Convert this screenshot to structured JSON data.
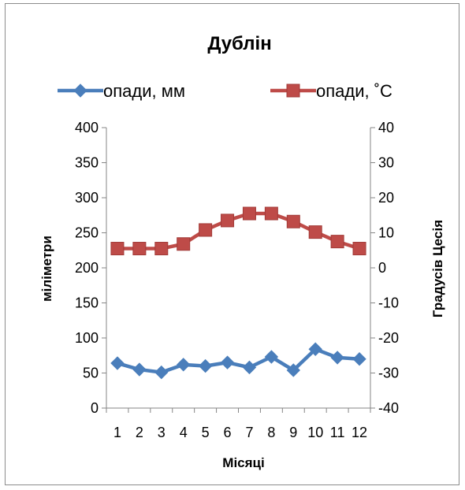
{
  "chart_data": {
    "type": "line",
    "title": "Дублін",
    "xlabel": "Місяці",
    "ylabel_left": "міліметри",
    "ylabel_right": "Градусів Цесія",
    "categories": [
      "1",
      "2",
      "3",
      "4",
      "5",
      "6",
      "7",
      "8",
      "9",
      "10",
      "11",
      "12"
    ],
    "ylim_left": [
      0,
      400
    ],
    "yticks_left": [
      "0",
      "50",
      "100",
      "150",
      "200",
      "250",
      "300",
      "350",
      "400"
    ],
    "ylim_right": [
      -40,
      40
    ],
    "yticks_right": [
      "-40",
      "-30",
      "-20",
      "-10",
      "0",
      "10",
      "20",
      "30",
      "40"
    ],
    "grid": false,
    "legend_position": "top",
    "series": [
      {
        "name": "опади, мм",
        "axis": "left",
        "color": "#4a7ebb",
        "marker": "diamond",
        "values": [
          64,
          55,
          51,
          62,
          60,
          65,
          58,
          73,
          54,
          84,
          72,
          70
        ]
      },
      {
        "name": "опади, ˚С",
        "axis": "right",
        "color": "#be4b48",
        "marker": "square",
        "values": [
          5.5,
          5.5,
          5.5,
          6.8,
          10.8,
          13.5,
          15.5,
          15.5,
          13.2,
          10.2,
          7.5,
          5.5
        ]
      }
    ]
  }
}
